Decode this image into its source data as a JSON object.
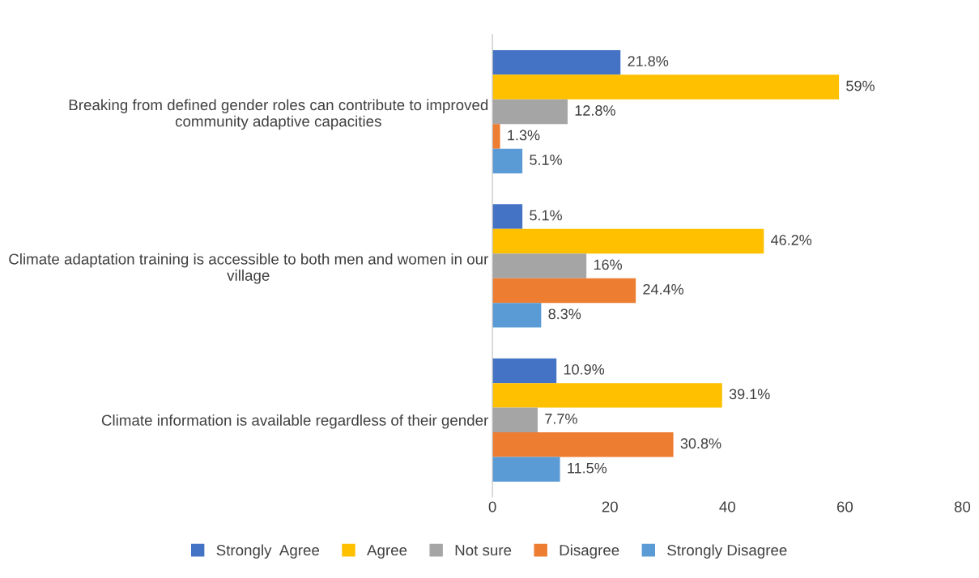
{
  "chart_data": {
    "type": "bar",
    "orientation": "horizontal",
    "categories": [
      "Breaking from defined gender roles can contribute to improved community adaptive capacities",
      "Climate adaptation training is accessible to both men and women in our village",
      "Climate information is available regardless of their gender"
    ],
    "series": [
      {
        "name": "Strongly  Agree",
        "color": "#4472c4",
        "values": [
          21.8,
          5.1,
          10.9
        ],
        "value_labels": [
          "21.8%",
          "5.1%",
          "10.9%"
        ]
      },
      {
        "name": "Agree",
        "color": "#ffc000",
        "values": [
          59,
          46.2,
          39.1
        ],
        "value_labels": [
          "59%",
          "46.2%",
          "39.1%"
        ]
      },
      {
        "name": "Not sure",
        "color": "#a5a5a5",
        "values": [
          12.8,
          16,
          7.7
        ],
        "value_labels": [
          "12.8%",
          "16%",
          "7.7%"
        ]
      },
      {
        "name": "Disagree",
        "color": "#ed7d31",
        "values": [
          1.3,
          24.4,
          30.8
        ],
        "value_labels": [
          "1.3%",
          "24.4%",
          "30.8%"
        ]
      },
      {
        "name": "Strongly Disagree",
        "color": "#5b9bd5",
        "values": [
          5.1,
          8.3,
          11.5
        ],
        "value_labels": [
          "5.1%",
          "8.3%",
          "11.5%"
        ]
      }
    ],
    "xlim": [
      0,
      80
    ],
    "xticks": [
      0,
      20,
      40,
      60,
      80
    ],
    "grid": false,
    "legend": "bottom"
  }
}
